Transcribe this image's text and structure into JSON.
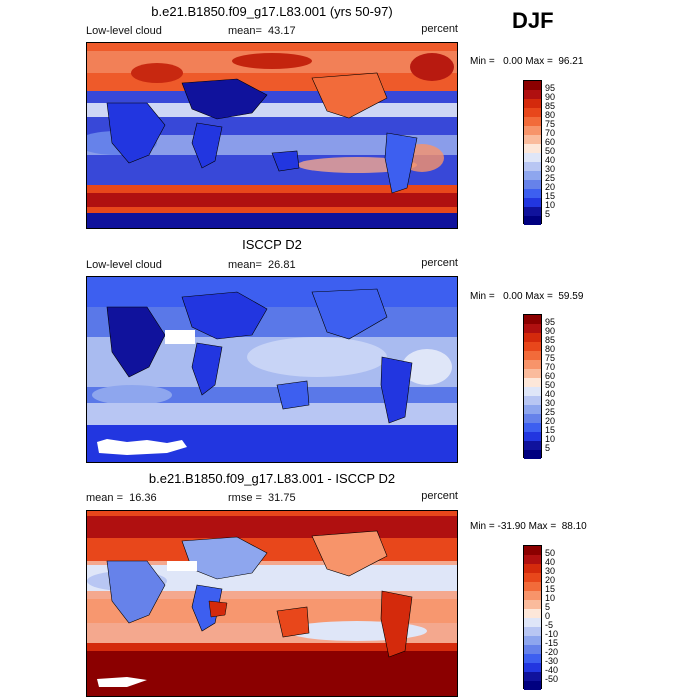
{
  "season": "DJF",
  "panels": [
    {
      "title": "b.e21.B1850.f09_g17.L83.001 (yrs 50-97)",
      "left_text": "Low-level cloud",
      "mid_text": "mean=  43.17",
      "units": "percent",
      "minmax": "Min =   0.00 Max =  96.21"
    },
    {
      "title": "ISCCP D2",
      "left_text": "Low-level cloud",
      "mid_text": "mean=  26.81",
      "units": "percent",
      "minmax": "Min =   0.00 Max =  59.59"
    },
    {
      "title": "b.e21.B1850.f09_g17.L83.001 - ISCCP D2",
      "left_text": "mean =  16.36",
      "mid_text": "rmse =  31.75",
      "units": "percent",
      "minmax": "Min = -31.90 Max =  88.10"
    }
  ],
  "colorbars": [
    {
      "labels": [
        "95",
        "90",
        "85",
        "80",
        "75",
        "70",
        "60",
        "50",
        "40",
        "30",
        "25",
        "20",
        "15",
        "10",
        "5"
      ],
      "colors": [
        "#8b0000",
        "#b01010",
        "#d42a0c",
        "#e8471b",
        "#f26b3a",
        "#f7946a",
        "#fabb9c",
        "#fde7d9",
        "#dfe6f8",
        "#b8c6f3",
        "#8ea6ee",
        "#6682ea",
        "#3d5ff0",
        "#2236e0",
        "#10129c",
        "#000080"
      ]
    },
    {
      "labels": [
        "95",
        "90",
        "85",
        "80",
        "75",
        "70",
        "60",
        "50",
        "40",
        "30",
        "25",
        "20",
        "15",
        "10",
        "5"
      ],
      "colors": [
        "#8b0000",
        "#b01010",
        "#d42a0c",
        "#e8471b",
        "#f26b3a",
        "#f7946a",
        "#fabb9c",
        "#fde7d9",
        "#dfe6f8",
        "#b8c6f3",
        "#8ea6ee",
        "#6682ea",
        "#3d5ff0",
        "#2236e0",
        "#10129c",
        "#000080"
      ]
    },
    {
      "labels": [
        "50",
        "40",
        "30",
        "20",
        "15",
        "10",
        "5",
        "0",
        "-5",
        "-10",
        "-15",
        "-20",
        "-30",
        "-40",
        "-50"
      ],
      "colors": [
        "#8b0000",
        "#b01010",
        "#d42a0c",
        "#e8471b",
        "#f26b3a",
        "#f7946a",
        "#fabb9c",
        "#fde7d9",
        "#dfe6f8",
        "#b8c6f3",
        "#8ea6ee",
        "#6682ea",
        "#3d5ff0",
        "#2236e0",
        "#10129c",
        "#000080"
      ]
    }
  ],
  "chart_data": [
    {
      "type": "heatmap",
      "title": "b.e21.B1850.f09_g17.L83.001 (yrs 50-97)",
      "variable": "Low-level cloud",
      "units": "percent",
      "mean": 43.17,
      "min": 0.0,
      "max": 96.21,
      "contour_levels": [
        5,
        10,
        15,
        20,
        25,
        30,
        40,
        50,
        60,
        70,
        75,
        80,
        85,
        90,
        95
      ]
    },
    {
      "type": "heatmap",
      "title": "ISCCP D2",
      "variable": "Low-level cloud",
      "units": "percent",
      "mean": 26.81,
      "min": 0.0,
      "max": 59.59,
      "contour_levels": [
        5,
        10,
        15,
        20,
        25,
        30,
        40,
        50,
        60,
        70,
        75,
        80,
        85,
        90,
        95
      ]
    },
    {
      "type": "heatmap",
      "title": "b.e21.B1850.f09_g17.L83.001 - ISCCP D2",
      "units": "percent",
      "mean": 16.36,
      "rmse": 31.75,
      "min": -31.9,
      "max": 88.1,
      "contour_levels": [
        -50,
        -40,
        -30,
        -20,
        -15,
        -10,
        -5,
        0,
        5,
        10,
        15,
        20,
        30,
        40,
        50
      ]
    }
  ]
}
